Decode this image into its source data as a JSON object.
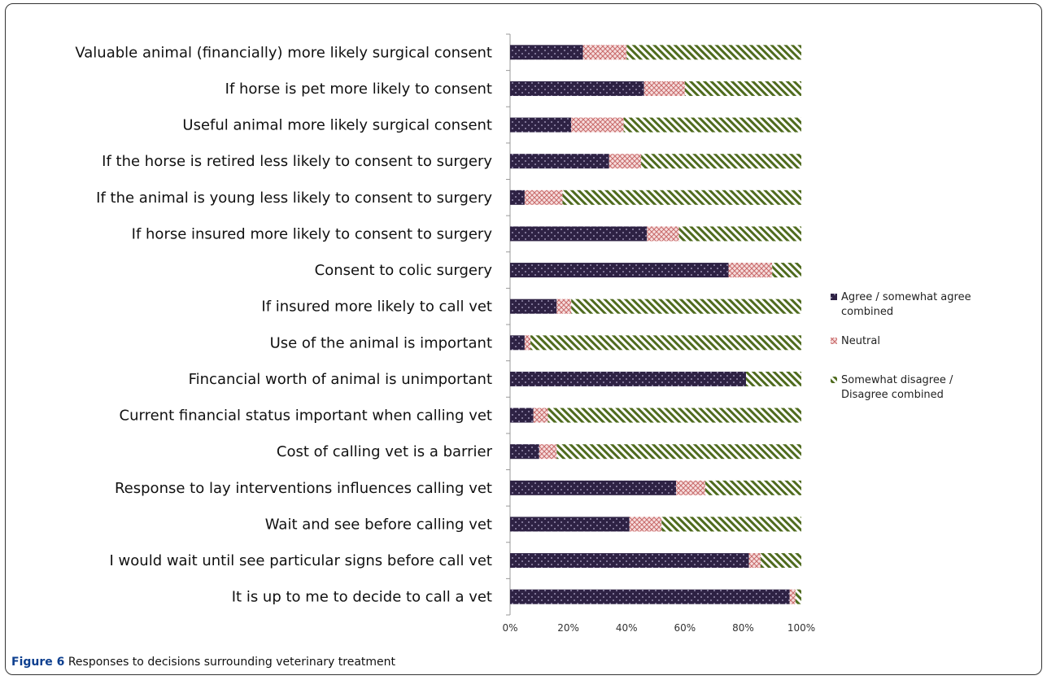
{
  "caption": {
    "label": "Figure 6",
    "text": " Responses to decisions surrounding veterinary treatment"
  },
  "chart_data": {
    "type": "bar",
    "orientation": "horizontal",
    "stacked": "100%",
    "categories": [
      "Valuable animal (financially) more likely surgical consent",
      "If horse is pet more likely to consent",
      "Useful animal more likely surgical consent",
      "If the horse is retired less likely to consent to surgery",
      "If the animal is young less likely to consent to surgery",
      "If horse insured more likely to consent to surgery",
      "Consent to colic surgery",
      "If insured more likely to call vet",
      "Use of the animal is important",
      "Fincancial worth of animal is unimportant",
      "Current financial status important when calling vet",
      "Cost of calling vet is a barrier",
      "Response to lay interventions influences calling vet",
      "Wait and see before calling vet",
      "I would wait until see particular signs before call vet",
      "It is up to me to decide to call a vet"
    ],
    "series": [
      {
        "name": "Agree / somewhat agree combined",
        "color": "#2e2244",
        "values": [
          25,
          46,
          21,
          34,
          5,
          47,
          75,
          16,
          5,
          81,
          8,
          10,
          57,
          41,
          82,
          96
        ]
      },
      {
        "name": "Neutral",
        "color": "#e9a6a6",
        "values": [
          15,
          14,
          18,
          11,
          13,
          11,
          15,
          5,
          2,
          0,
          5,
          6,
          10,
          11,
          4,
          2
        ]
      },
      {
        "name": "Somewhat disagree / Disagree combined",
        "color": "#4f6b1e",
        "values": [
          60,
          40,
          61,
          55,
          82,
          42,
          10,
          79,
          93,
          19,
          87,
          84,
          33,
          48,
          14,
          2
        ]
      }
    ],
    "xlim": [
      0,
      100
    ],
    "xticks": [
      "0%",
      "20%",
      "40%",
      "60%",
      "80%",
      "100%"
    ],
    "legend": "right",
    "grid": false
  }
}
